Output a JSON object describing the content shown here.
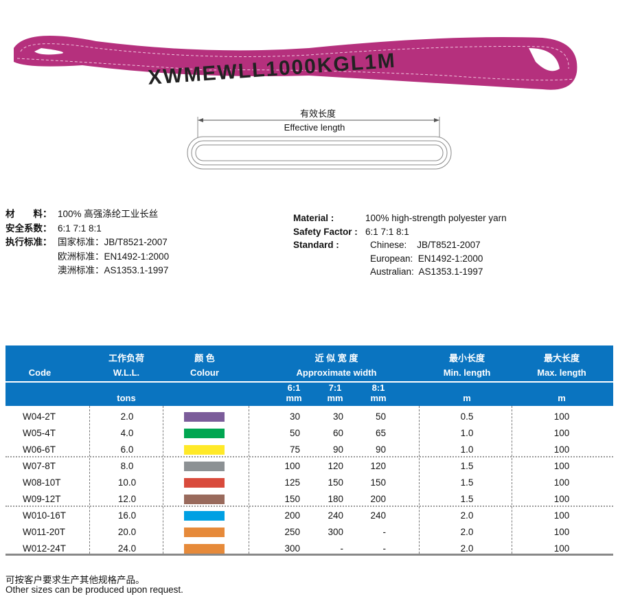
{
  "product_image": {
    "band_print": "XWMEWLL1000KGL1M",
    "color": "#b5307d"
  },
  "diagram": {
    "label_cn": "有效长度",
    "label_en": "Effective length"
  },
  "specs_cn": [
    {
      "label": "材　　料：",
      "value": "100% 高强涤纶工业长丝"
    },
    {
      "label": "安全系数：",
      "value": "6:1  7:1  8:1"
    },
    {
      "label": "执行标准：",
      "value": "国家标准：JB/T8521-2007"
    },
    {
      "label": "",
      "value": "欧洲标准：EN1492-1:2000"
    },
    {
      "label": "",
      "value": "澳洲标准：AS1353.1-1997"
    }
  ],
  "specs_en": [
    {
      "label": "Material",
      "sep": ":",
      "value": "100% high-strength polyester yarn"
    },
    {
      "label": "Safety Factor",
      "sep": ":",
      "value": "6:1  7:1  8:1"
    },
    {
      "label": "Standard",
      "sep": ":",
      "value": "Chinese:    JB/T8521-2007"
    },
    {
      "label": "",
      "sep": "",
      "value": "European:  EN1492-1:2000"
    },
    {
      "label": "",
      "sep": "",
      "value": "Australian:  AS1353.1-1997"
    }
  ],
  "table": {
    "header_color": "#0a74c0",
    "headers": {
      "code": "Code",
      "wll_cn": "工作负荷",
      "wll_en": "W.L.L.",
      "wll_unit": "tons",
      "colour_cn": "颜 色",
      "colour_en": "Colour",
      "width_cn": "近 似 宽 度",
      "width_en": "Approximate width",
      "w6": "6:1",
      "w7": "7:1",
      "w8": "8:1",
      "mm": "mm",
      "min_cn": "最小长度",
      "min_en": "Min. length",
      "min_unit": "m",
      "max_cn": "最大长度",
      "max_en": "Max. length",
      "max_unit": "m"
    },
    "rows": [
      {
        "code": "W04-2T",
        "wll": "2.0",
        "color": "#7b5c9a",
        "w6": "30",
        "w7": "30",
        "w8": "50",
        "min": "0.5",
        "max": "100"
      },
      {
        "code": "W05-4T",
        "wll": "4.0",
        "color": "#00a651",
        "w6": "50",
        "w7": "60",
        "w8": "65",
        "min": "1.0",
        "max": "100"
      },
      {
        "code": "W06-6T",
        "wll": "6.0",
        "color": "#ffe928",
        "w6": "75",
        "w7": "90",
        "w8": "90",
        "min": "1.0",
        "max": "100"
      },
      {
        "code": "W07-8T",
        "wll": "8.0",
        "color": "#8c9194",
        "w6": "100",
        "w7": "120",
        "w8": "120",
        "min": "1.5",
        "max": "100"
      },
      {
        "code": "W08-10T",
        "wll": "10.0",
        "color": "#d94b3c",
        "w6": "125",
        "w7": "150",
        "w8": "150",
        "min": "1.5",
        "max": "100"
      },
      {
        "code": "W09-12T",
        "wll": "12.0",
        "color": "#996a5c",
        "w6": "150",
        "w7": "180",
        "w8": "200",
        "min": "1.5",
        "max": "100"
      },
      {
        "code": "W010-16T",
        "wll": "16.0",
        "color": "#00a0e3",
        "w6": "200",
        "w7": "240",
        "w8": "240",
        "min": "2.0",
        "max": "100"
      },
      {
        "code": "W011-20T",
        "wll": "20.0",
        "color": "#e68a3a",
        "w6": "250",
        "w7": "300",
        "w8": "-",
        "min": "2.0",
        "max": "100"
      },
      {
        "code": "W012-24T",
        "wll": "24.0",
        "color": "#e68a3a",
        "w6": "300",
        "w7": "-",
        "w8": "-",
        "min": "2.0",
        "max": "100"
      }
    ]
  },
  "footer": {
    "cn": "可按客户要求生产其他规格产品。",
    "en": "Other sizes can be produced upon request."
  }
}
